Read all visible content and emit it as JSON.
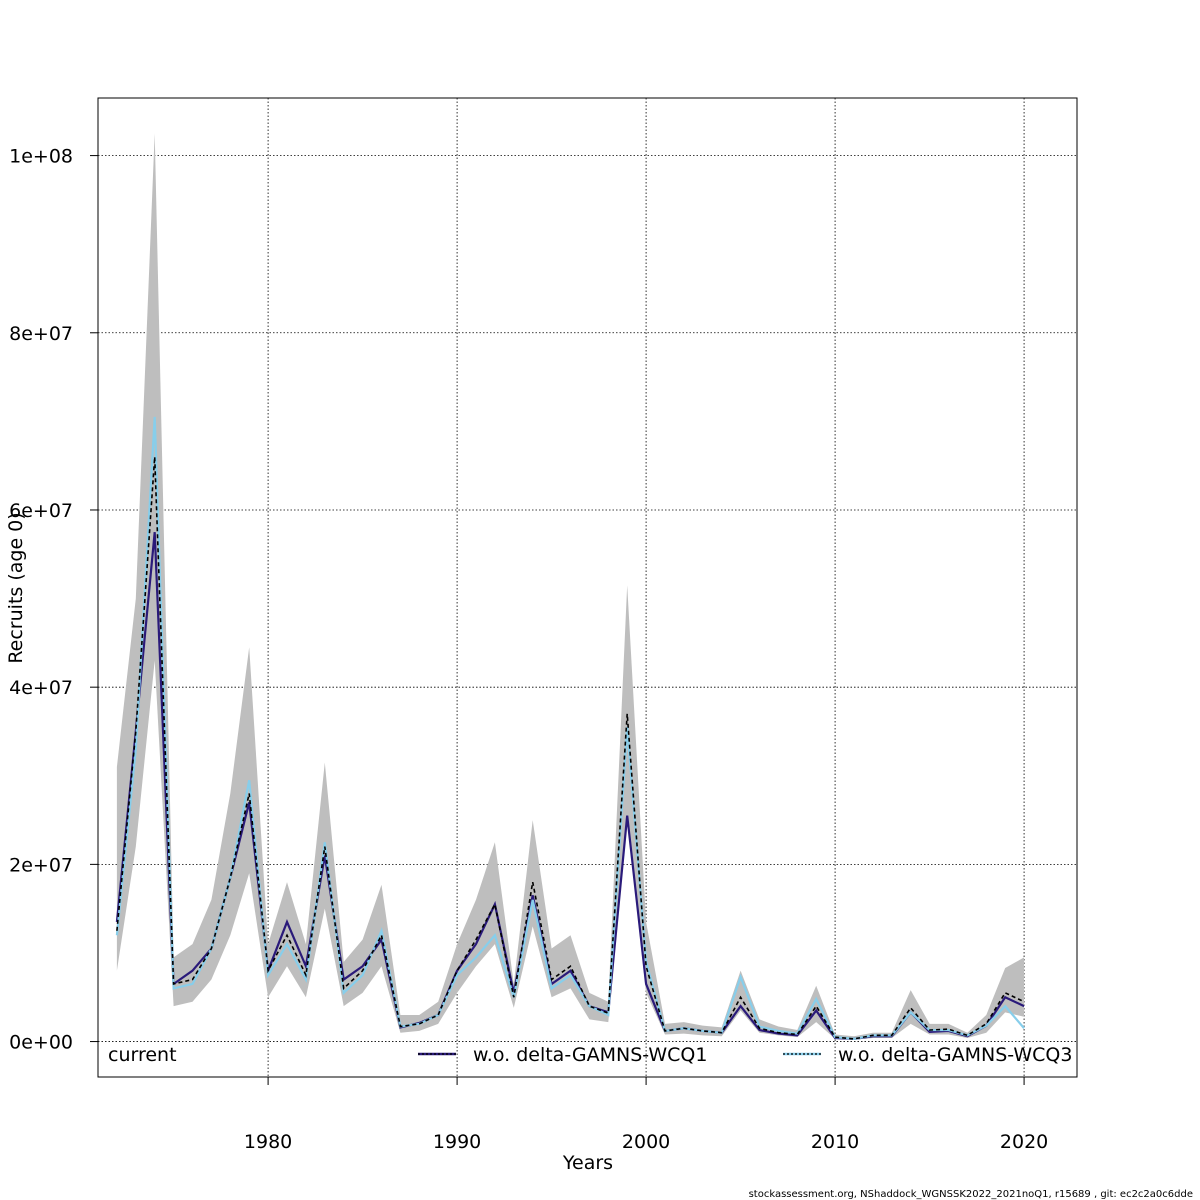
{
  "chart_data": {
    "type": "line",
    "xlabel": "Years",
    "ylabel": "Recruits (age 0)",
    "xlim": [
      1971.0,
      2022.8
    ],
    "ylim": [
      -4000000,
      106500000
    ],
    "x_ticks": [
      1980,
      1990,
      2000,
      2010,
      2020
    ],
    "y_ticks": [
      0,
      20000000,
      40000000,
      60000000,
      80000000,
      100000000
    ],
    "y_tick_labels": [
      "0e+00",
      "2e+07",
      "4e+07",
      "6e+07",
      "8e+07",
      "1e+08"
    ],
    "grid": true,
    "legend_position": "bottom",
    "x": [
      1972,
      1973,
      1974,
      1975,
      1976,
      1977,
      1978,
      1979,
      1980,
      1981,
      1982,
      1983,
      1984,
      1985,
      1986,
      1987,
      1988,
      1989,
      1990,
      1991,
      1992,
      1993,
      1994,
      1995,
      1996,
      1997,
      1998,
      1999,
      2000,
      2001,
      2002,
      2003,
      2004,
      2005,
      2006,
      2007,
      2008,
      2009,
      2010,
      2011,
      2012,
      2013,
      2014,
      2015,
      2016,
      2017,
      2018,
      2019,
      2020
    ],
    "band": {
      "name": "current",
      "color": "#bebebe",
      "upper": [
        31000000,
        50000000,
        102500000,
        9500000,
        11000000,
        16000000,
        28000000,
        44500000,
        11000000,
        18000000,
        11000000,
        31500000,
        9000000,
        11500000,
        17700000,
        3000000,
        3000000,
        4500000,
        11000000,
        16000000,
        22500000,
        6500000,
        25000000,
        10500000,
        12000000,
        5500000,
        4500000,
        51500000,
        13500000,
        2000000,
        2200000,
        1800000,
        1600000,
        8000000,
        2500000,
        1700000,
        1300000,
        6300000,
        800000,
        600000,
        1000000,
        1000000,
        5800000,
        2000000,
        2000000,
        1000000,
        3000000,
        8300000,
        9500000
      ],
      "lower": [
        8000000,
        22000000,
        43000000,
        4000000,
        4500000,
        7000000,
        12000000,
        19000000,
        5000000,
        8500000,
        5000000,
        15000000,
        4000000,
        5500000,
        8500000,
        1000000,
        1200000,
        2000000,
        5500000,
        8500000,
        11000000,
        3800000,
        13000000,
        5000000,
        6000000,
        2500000,
        2200000,
        25000000,
        5500000,
        800000,
        900000,
        700000,
        600000,
        3500000,
        1000000,
        700000,
        500000,
        2200000,
        300000,
        200000,
        400000,
        400000,
        2000000,
        800000,
        800000,
        400000,
        1000000,
        3300000,
        2800000
      ]
    },
    "series": [
      {
        "name": "current",
        "color": "#000000",
        "style": "dashed",
        "values": [
          12500000,
          35000000,
          66000000,
          6500000,
          7000000,
          10500000,
          18500000,
          28000000,
          8000000,
          12000000,
          7500000,
          22000000,
          6000000,
          8000000,
          12000000,
          1700000,
          2000000,
          3000000,
          8000000,
          11500000,
          15500000,
          5000000,
          18000000,
          7000000,
          8500000,
          4000000,
          3200000,
          37000000,
          8500000,
          1200000,
          1500000,
          1200000,
          1000000,
          5000000,
          1500000,
          1000000,
          800000,
          4000000,
          500000,
          300000,
          700000,
          700000,
          3800000,
          1300000,
          1400000,
          700000,
          2000000,
          5500000,
          4500000
        ]
      },
      {
        "name": "w.o. delta-GAMNS-WCQ1",
        "color": "#2a1a7a",
        "style": "solid",
        "values": [
          13500000,
          35000000,
          57500000,
          6500000,
          8000000,
          10500000,
          18500000,
          27000000,
          8000000,
          13500000,
          8500000,
          21000000,
          7000000,
          8500000,
          11500000,
          1600000,
          2100000,
          3000000,
          8000000,
          11000000,
          15500000,
          5500000,
          16500000,
          6500000,
          8000000,
          4000000,
          3300000,
          25500000,
          6500000,
          1200000,
          1500000,
          1200000,
          1000000,
          4000000,
          1300000,
          900000,
          700000,
          3500000,
          400000,
          300000,
          600000,
          600000,
          3300000,
          1100000,
          1200000,
          600000,
          1800000,
          5000000,
          4000000
        ]
      },
      {
        "name": "w.o. delta-GAMNS-WCQ3",
        "color": "#87ceeb",
        "style": "solid",
        "values": [
          12000000,
          33000000,
          70500000,
          6000000,
          6500000,
          10500000,
          18500000,
          29500000,
          7500000,
          11000000,
          7000000,
          22500000,
          5500000,
          7500000,
          12500000,
          1700000,
          2000000,
          3000000,
          7500000,
          9500000,
          12000000,
          5000000,
          16000000,
          6000000,
          7500000,
          4000000,
          3000000,
          35500000,
          9000000,
          1200000,
          1500000,
          1200000,
          1000000,
          7300000,
          1700000,
          1200000,
          900000,
          4800000,
          500000,
          300000,
          700000,
          700000,
          3300000,
          1300000,
          1300000,
          700000,
          1800000,
          4000000,
          1500000
        ]
      }
    ]
  },
  "footer": "stockassessment.org, NShaddock_WGNSSK2022_2021noQ1, r15689 , git: ec2c2a0c6dde"
}
